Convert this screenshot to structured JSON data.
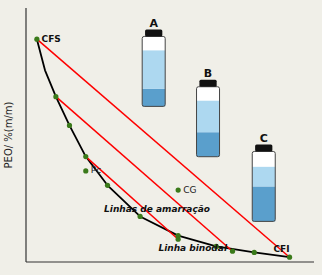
{
  "chart_data": {
    "type": "line",
    "ylabel": "PEO/ %(m/m)",
    "xlim": [
      0,
      1.06
    ],
    "ylim": [
      0,
      1.06
    ],
    "xticks": [],
    "yticks": [],
    "tick_labels": false,
    "grid": false,
    "background_color": "#f0efe8",
    "series": [
      {
        "x": [
          0.04,
          0.07,
          0.11,
          0.16,
          0.22,
          0.3,
          0.42,
          0.56,
          0.7,
          0.84,
          0.97
        ],
        "values": [
          0.93,
          0.8,
          0.69,
          0.57,
          0.44,
          0.32,
          0.19,
          0.11,
          0.065,
          0.04,
          0.02
        ],
        "color": "#000000"
      },
      {
        "x": [
          0.04,
          0.97
        ],
        "values": [
          0.93,
          0.02
        ],
        "color": "#ff0000"
      },
      {
        "x": [
          0.11,
          0.76
        ],
        "values": [
          0.69,
          0.045
        ],
        "color": "#ff0000"
      },
      {
        "x": [
          0.22,
          0.56
        ],
        "values": [
          0.44,
          0.095
        ],
        "color": "#ff0000"
      },
      {
        "type": "scatter",
        "color": "#3a7a1a",
        "x": [
          0.04,
          0.11,
          0.16,
          0.22,
          0.3,
          0.42,
          0.56,
          0.56,
          0.7,
          0.76,
          0.84,
          0.97
        ],
        "values": [
          0.93,
          0.69,
          0.57,
          0.44,
          0.32,
          0.19,
          0.095,
          0.11,
          0.065,
          0.045,
          0.04,
          0.02
        ]
      },
      {
        "type": "scatter",
        "color": "#3a7a1a",
        "x": [
          0.56,
          0.22
        ],
        "values": [
          0.3,
          0.38
        ],
        "labels": [
          "CG",
          "Pc"
        ]
      }
    ],
    "annotations": [
      {
        "text": "CFS",
        "x": 0.05,
        "y": 0.93
      },
      {
        "text": "CFI",
        "x": 0.97,
        "y": 0.02
      },
      {
        "text": "Linhas de amarração",
        "x": 0.28,
        "y": 0.22
      },
      {
        "text": "Linha binodal",
        "x": 0.48,
        "y": 0.055
      }
    ],
    "vials": [
      {
        "label": "A",
        "x": 0.47,
        "y": 0.76,
        "top_phase": 0.55,
        "bottom_phase": 0.25
      },
      {
        "label": "B",
        "x": 0.67,
        "y": 0.55,
        "top_phase": 0.45,
        "bottom_phase": 0.35
      },
      {
        "label": "C",
        "x": 0.875,
        "y": 0.28,
        "top_phase": 0.28,
        "bottom_phase": 0.5
      }
    ]
  }
}
